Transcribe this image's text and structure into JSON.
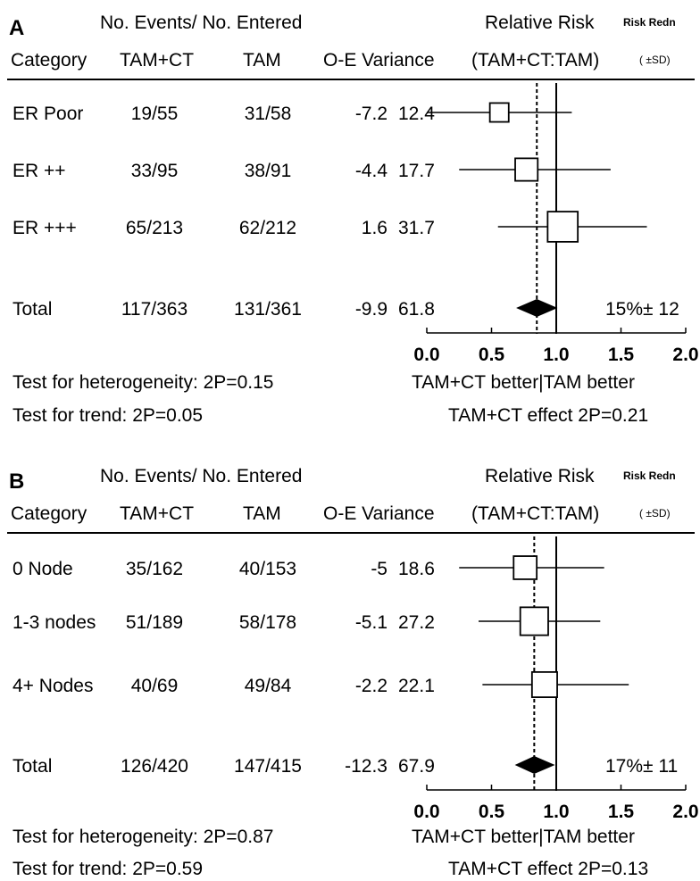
{
  "panels": [
    {
      "letter": "A",
      "header": {
        "events": "No. Events/ No. Entered",
        "rr": "Relative Risk",
        "risk_redn": "Risk Redn",
        "category": "Category",
        "tamct": "TAM+CT",
        "tam": "TAM",
        "oe": "O-E Variance",
        "ratio": "(TAM+CT:TAM)",
        "sd": "( ±SD)"
      },
      "rows": [
        {
          "category": "ER Poor",
          "tamct": "19/55",
          "tam": "31/58",
          "oe": "-7.2",
          "var": "12.4"
        },
        {
          "category": "ER ++",
          "tamct": "33/95",
          "tam": "38/91",
          "oe": "-4.4",
          "var": "17.7"
        },
        {
          "category": "ER +++",
          "tamct": "65/213",
          "tam": "62/212",
          "oe": "1.6",
          "var": "31.7"
        }
      ],
      "total": {
        "category": "Total",
        "tamct": "117/363",
        "tam": "131/361",
        "oe": "-9.9",
        "var": "61.8",
        "redn": "15%± 12"
      },
      "axis_ticks": [
        "0.0",
        "0.5",
        "1.0",
        "1.5",
        "2.0"
      ],
      "better": "TAM+CT better|TAM better",
      "het": "Test for heterogeneity: 2P=0.15",
      "trend": "Test for trend: 2P=0.05",
      "effect": "TAM+CT effect 2P=0.21"
    },
    {
      "letter": "B",
      "header": {
        "events": "No. Events/ No. Entered",
        "rr": "Relative Risk",
        "risk_redn": "Risk Redn",
        "category": "Category",
        "tamct": "TAM+CT",
        "tam": "TAM",
        "oe": "O-E Variance",
        "ratio": "(TAM+CT:TAM)",
        "sd": "( ±SD)"
      },
      "rows": [
        {
          "category": "0   Node",
          "tamct": "35/162",
          "tam": "40/153",
          "oe": "-5",
          "var": "18.6"
        },
        {
          "category": "1-3 nodes",
          "tamct": "51/189",
          "tam": "58/178",
          "oe": "-5.1",
          "var": "27.2"
        },
        {
          "category": "4+  Nodes",
          "tamct": "40/69",
          "tam": "49/84",
          "oe": "-2.2",
          "var": "22.1"
        }
      ],
      "total": {
        "category": "Total",
        "tamct": "126/420",
        "tam": "147/415",
        "oe": "-12.3",
        "var": "67.9",
        "redn": "17%± 11"
      },
      "axis_ticks": [
        "0.0",
        "0.5",
        "1.0",
        "1.5",
        "2.0"
      ],
      "better": "TAM+CT better|TAM better",
      "het": "Test for heterogeneity: 2P=0.87",
      "trend": "Test for trend: 2P=0.59",
      "effect": "TAM+CT effect 2P=0.13"
    }
  ],
  "chart_data": [
    {
      "type": "forest",
      "xlim": [
        0,
        2
      ],
      "reference_line": 1.0,
      "overall_line": 0.85,
      "categories": [
        "ER Poor",
        "ER ++",
        "ER +++",
        "Total"
      ],
      "rr": [
        0.56,
        0.77,
        1.05,
        0.85
      ],
      "ci_low": [
        0.0,
        0.25,
        0.55,
        0.69
      ],
      "ci_high": [
        1.12,
        1.42,
        1.7,
        1.01
      ],
      "variance": [
        12.4,
        17.7,
        31.7,
        61.8
      ]
    },
    {
      "type": "forest",
      "xlim": [
        0,
        2
      ],
      "reference_line": 1.0,
      "overall_line": 0.83,
      "categories": [
        "0 Node",
        "1-3 nodes",
        "4+ Nodes",
        "Total"
      ],
      "rr": [
        0.76,
        0.83,
        0.91,
        0.83
      ],
      "ci_low": [
        0.25,
        0.4,
        0.43,
        0.68
      ],
      "ci_high": [
        1.37,
        1.34,
        1.56,
        0.99
      ],
      "variance": [
        18.6,
        27.2,
        22.1,
        67.9
      ]
    }
  ]
}
